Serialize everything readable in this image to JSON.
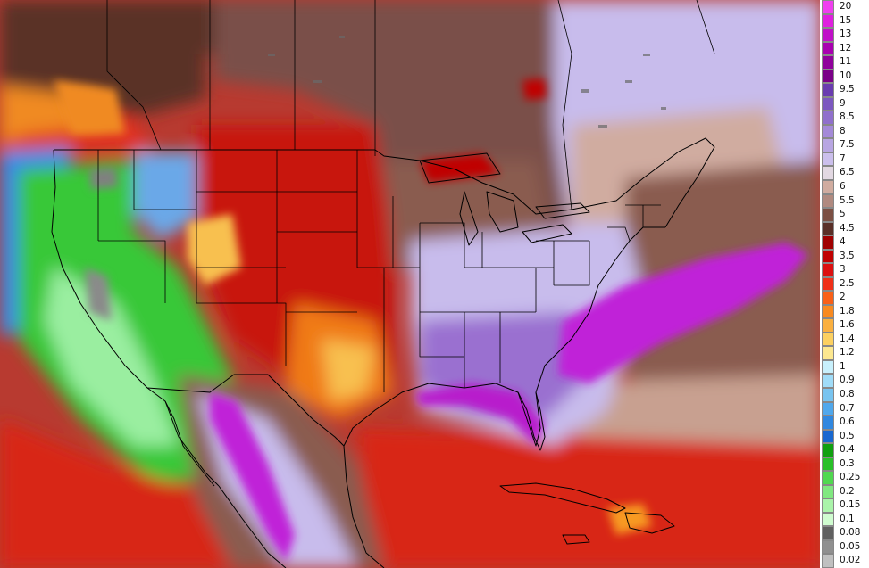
{
  "map": {
    "region": "contiguous United States, southern Canada, Mexico, Caribbean",
    "field": "shaded scalar field",
    "palette": {
      "ocean_far": "#3a2a2a",
      "ocean_mid": "#c24a3a",
      "ocean_warm": "#e0302a",
      "land_brown": "#7a5048",
      "land_tan": "#c8a090",
      "lavender": "#c8bcec",
      "purple": "#8a56c8",
      "magenta": "#c020d8",
      "green": "#38c838",
      "light_green": "#8ee88e",
      "blue": "#3a8ae8",
      "yellow": "#f8d060",
      "orange": "#f08a20",
      "borders": "#000000"
    }
  },
  "legend": {
    "entries": [
      {
        "label": "20",
        "color": "#ef3fef"
      },
      {
        "label": "15",
        "color": "#df1fdf"
      },
      {
        "label": "13",
        "color": "#c010c8"
      },
      {
        "label": "12",
        "color": "#a800b0"
      },
      {
        "label": "11",
        "color": "#90009c"
      },
      {
        "label": "10",
        "color": "#7a0088"
      },
      {
        "label": "9.5",
        "color": "#6a3cb0"
      },
      {
        "label": "9",
        "color": "#7c58c0"
      },
      {
        "label": "8.5",
        "color": "#9070cc"
      },
      {
        "label": "8",
        "color": "#a48ad8"
      },
      {
        "label": "7.5",
        "color": "#b8a6e2"
      },
      {
        "label": "7",
        "color": "#cbbfec"
      },
      {
        "label": "6.5",
        "color": "#e2d8e2"
      },
      {
        "label": "6",
        "color": "#d0aca0"
      },
      {
        "label": "5.5",
        "color": "#b08a80"
      },
      {
        "label": "5",
        "color": "#7c5044"
      },
      {
        "label": "4.5",
        "color": "#5a3028"
      },
      {
        "label": "4",
        "color": "#a00000"
      },
      {
        "label": "3.5",
        "color": "#c00000"
      },
      {
        "label": "3",
        "color": "#dc1010"
      },
      {
        "label": "2.5",
        "color": "#f03018"
      },
      {
        "label": "2",
        "color": "#f86018"
      },
      {
        "label": "1.8",
        "color": "#f88a20"
      },
      {
        "label": "1.6",
        "color": "#fab040"
      },
      {
        "label": "1.4",
        "color": "#fcd060"
      },
      {
        "label": "1.2",
        "color": "#fde890"
      },
      {
        "label": "1",
        "color": "#c8f0fc"
      },
      {
        "label": "0.9",
        "color": "#a0dcf8"
      },
      {
        "label": "0.8",
        "color": "#78c4f0"
      },
      {
        "label": "0.7",
        "color": "#50a8ec"
      },
      {
        "label": "0.6",
        "color": "#3088e0"
      },
      {
        "label": "0.5",
        "color": "#1868d0"
      },
      {
        "label": "0.4",
        "color": "#10a010"
      },
      {
        "label": "0.3",
        "color": "#28c028"
      },
      {
        "label": "0.25",
        "color": "#50d850"
      },
      {
        "label": "0.2",
        "color": "#80e880"
      },
      {
        "label": "0.15",
        "color": "#aaf4aa"
      },
      {
        "label": "0.1",
        "color": "#d0fcd0"
      },
      {
        "label": "0.08",
        "color": "#606060"
      },
      {
        "label": "0.05",
        "color": "#909090"
      },
      {
        "label": "0.02",
        "color": "#c0c0c0"
      }
    ]
  }
}
